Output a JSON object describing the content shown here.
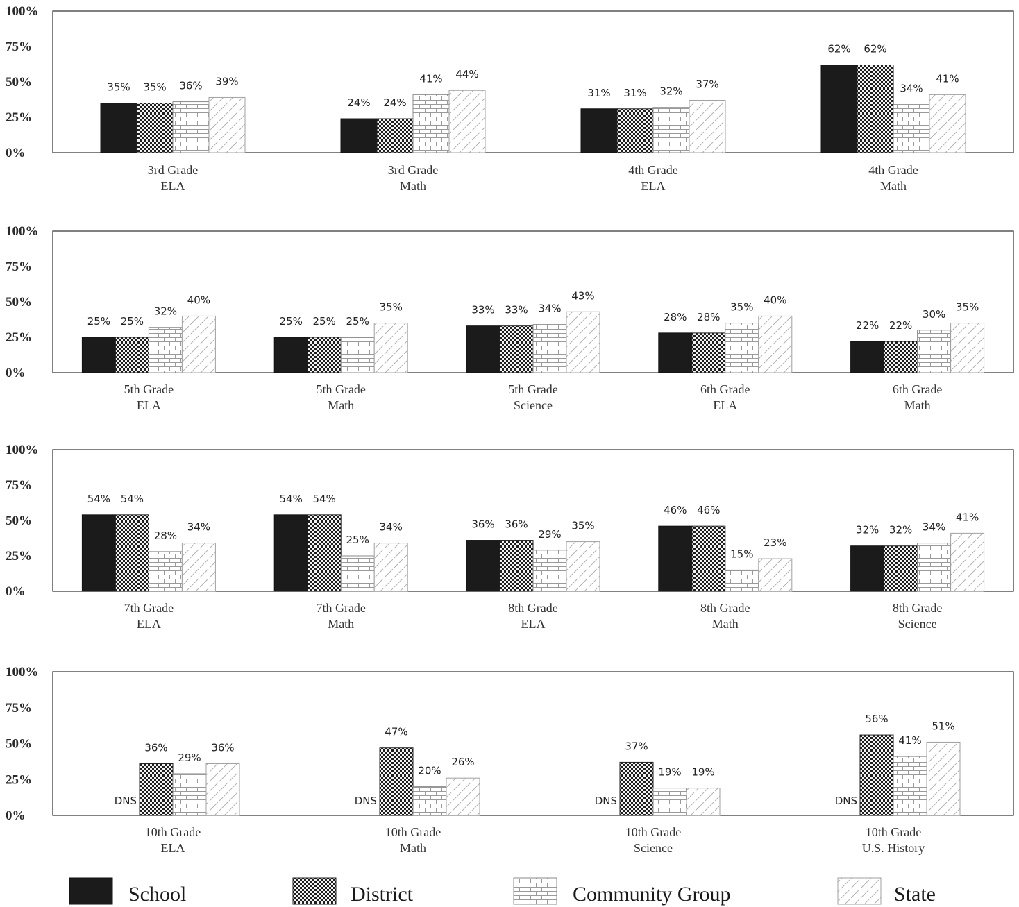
{
  "chart_data": [
    {
      "type": "bar",
      "yticks": [
        "100%",
        "75%",
        "50%",
        "25%",
        "0%"
      ],
      "ylim": [
        0,
        100
      ],
      "categories": [
        [
          "3rd Grade",
          "ELA"
        ],
        [
          "3rd Grade",
          "Math"
        ],
        [
          "4th Grade",
          "ELA"
        ],
        [
          "4th Grade",
          "Math"
        ]
      ],
      "series": [
        {
          "name": "School",
          "values": [
            35,
            24,
            31,
            62
          ],
          "labels": [
            "35%",
            "24%",
            "31%",
            "62%"
          ]
        },
        {
          "name": "District",
          "values": [
            35,
            24,
            31,
            62
          ],
          "labels": [
            "35%",
            "24%",
            "31%",
            "62%"
          ]
        },
        {
          "name": "Community Group",
          "values": [
            36,
            41,
            32,
            34
          ],
          "labels": [
            "36%",
            "41%",
            "32%",
            "34%"
          ]
        },
        {
          "name": "State",
          "values": [
            39,
            44,
            37,
            41
          ],
          "labels": [
            "39%",
            "44%",
            "37%",
            "41%"
          ]
        }
      ]
    },
    {
      "type": "bar",
      "yticks": [
        "100%",
        "75%",
        "50%",
        "25%",
        "0%"
      ],
      "ylim": [
        0,
        100
      ],
      "categories": [
        [
          "5th Grade",
          "ELA"
        ],
        [
          "5th Grade",
          "Math"
        ],
        [
          "5th Grade",
          "Science"
        ],
        [
          "6th Grade",
          "ELA"
        ],
        [
          "6th Grade",
          "Math"
        ]
      ],
      "series": [
        {
          "name": "School",
          "values": [
            25,
            25,
            33,
            28,
            22
          ],
          "labels": [
            "25%",
            "25%",
            "33%",
            "28%",
            "22%"
          ]
        },
        {
          "name": "District",
          "values": [
            25,
            25,
            33,
            28,
            22
          ],
          "labels": [
            "25%",
            "25%",
            "33%",
            "28%",
            "22%"
          ]
        },
        {
          "name": "Community Group",
          "values": [
            32,
            25,
            34,
            35,
            30
          ],
          "labels": [
            "32%",
            "25%",
            "34%",
            "35%",
            "30%"
          ]
        },
        {
          "name": "State",
          "values": [
            40,
            35,
            43,
            40,
            35
          ],
          "labels": [
            "40%",
            "35%",
            "43%",
            "40%",
            "35%"
          ]
        }
      ]
    },
    {
      "type": "bar",
      "yticks": [
        "100%",
        "75%",
        "50%",
        "25%",
        "0%"
      ],
      "ylim": [
        0,
        100
      ],
      "categories": [
        [
          "7th Grade",
          "ELA"
        ],
        [
          "7th Grade",
          "Math"
        ],
        [
          "8th Grade",
          "ELA"
        ],
        [
          "8th Grade",
          "Math"
        ],
        [
          "8th Grade",
          "Science"
        ]
      ],
      "series": [
        {
          "name": "School",
          "values": [
            54,
            54,
            36,
            46,
            32
          ],
          "labels": [
            "54%",
            "54%",
            "36%",
            "46%",
            "32%"
          ]
        },
        {
          "name": "District",
          "values": [
            54,
            54,
            36,
            46,
            32
          ],
          "labels": [
            "54%",
            "54%",
            "36%",
            "46%",
            "32%"
          ]
        },
        {
          "name": "Community Group",
          "values": [
            28,
            25,
            29,
            15,
            34
          ],
          "labels": [
            "28%",
            "25%",
            "29%",
            "15%",
            "34%"
          ]
        },
        {
          "name": "State",
          "values": [
            34,
            34,
            35,
            23,
            41
          ],
          "labels": [
            "34%",
            "34%",
            "35%",
            "23%",
            "41%"
          ]
        }
      ]
    },
    {
      "type": "bar",
      "yticks": [
        "100%",
        "75%",
        "50%",
        "25%",
        "0%"
      ],
      "ylim": [
        0,
        100
      ],
      "categories": [
        [
          "10th Grade",
          "ELA"
        ],
        [
          "10th Grade",
          "Math"
        ],
        [
          "10th Grade",
          "Science"
        ],
        [
          "10th Grade",
          "U.S. History"
        ]
      ],
      "series": [
        {
          "name": "School",
          "values": [
            null,
            null,
            null,
            null
          ],
          "labels": [
            "DNS",
            "DNS",
            "DNS",
            "DNS"
          ]
        },
        {
          "name": "District",
          "values": [
            36,
            47,
            37,
            56
          ],
          "labels": [
            "36%",
            "47%",
            "37%",
            "56%"
          ]
        },
        {
          "name": "Community Group",
          "values": [
            29,
            20,
            19,
            41
          ],
          "labels": [
            "29%",
            "20%",
            "19%",
            "41%"
          ]
        },
        {
          "name": "State",
          "values": [
            36,
            26,
            19,
            51
          ],
          "labels": [
            "36%",
            "26%",
            "19%",
            "51%"
          ]
        }
      ]
    }
  ],
  "legend": {
    "placement": "bottom",
    "items": [
      {
        "label": "School",
        "pattern": "solid-dark",
        "color": "#1c1c1c"
      },
      {
        "label": "District",
        "pattern": "checker",
        "color": "#3a3a3a"
      },
      {
        "label": "Community Group",
        "pattern": "brick",
        "color": "#9a9a9a"
      },
      {
        "label": "State",
        "pattern": "diagonal-dash",
        "color": "#b8b8b8"
      }
    ]
  }
}
